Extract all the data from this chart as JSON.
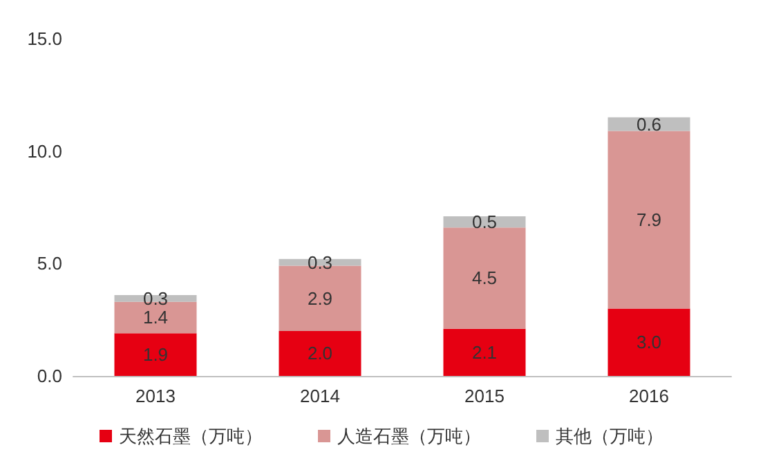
{
  "chart_data": {
    "type": "bar",
    "stacked": true,
    "categories": [
      "2013",
      "2014",
      "2015",
      "2016"
    ],
    "series": [
      {
        "name": "天然石墨（万吨）",
        "color": "#e60012",
        "values": [
          1.9,
          2.0,
          2.1,
          3.0
        ],
        "value_labels": [
          "1.9",
          "2.0",
          "2.1",
          "3.0"
        ]
      },
      {
        "name": "人造石墨（万吨）",
        "color": "#d99694",
        "values": [
          1.4,
          2.9,
          4.5,
          7.9
        ],
        "value_labels": [
          "1.4",
          "2.9",
          "4.5",
          "7.9"
        ]
      },
      {
        "name": "其他（万吨）",
        "color": "#bfbfbf",
        "values": [
          0.3,
          0.3,
          0.5,
          0.6
        ],
        "value_labels": [
          "0.3",
          "0.3",
          "0.5",
          "0.6"
        ]
      }
    ],
    "ylim": [
      0,
      15
    ],
    "yticks": [
      {
        "value": 0,
        "label": "0.0"
      },
      {
        "value": 5,
        "label": "5.0"
      },
      {
        "value": 10,
        "label": "10.0"
      },
      {
        "value": 15,
        "label": "15.0"
      }
    ],
    "grid": false,
    "legend": "bottom"
  }
}
